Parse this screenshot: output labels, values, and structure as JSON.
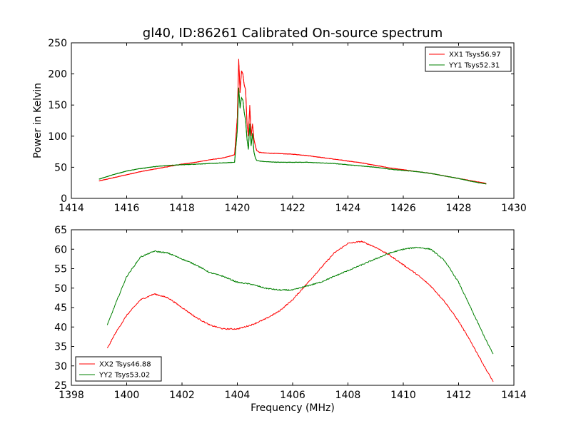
{
  "chart_data": [
    {
      "type": "line",
      "title": "gl40, ID:86261 Calibrated On-source spectrum",
      "xlabel": "",
      "ylabel": "Power in Kelvin",
      "xlim": [
        1414,
        1430
      ],
      "ylim": [
        0,
        250
      ],
      "xticks": [
        1414,
        1416,
        1418,
        1420,
        1422,
        1424,
        1426,
        1428,
        1430
      ],
      "yticks": [
        0,
        50,
        100,
        150,
        200,
        250
      ],
      "legend_position": "top-right",
      "grid": false,
      "series": [
        {
          "name": "XX1 Tsys56.97",
          "color": "#ff0000",
          "x": [
            1415.0,
            1415.5,
            1416.0,
            1416.5,
            1417.0,
            1417.5,
            1418.0,
            1418.5,
            1419.0,
            1419.5,
            1419.9,
            1420.0,
            1420.05,
            1420.1,
            1420.15,
            1420.2,
            1420.25,
            1420.3,
            1420.35,
            1420.4,
            1420.45,
            1420.5,
            1420.55,
            1420.6,
            1420.65,
            1420.7,
            1420.8,
            1421.0,
            1421.5,
            1422.0,
            1422.5,
            1423.0,
            1423.5,
            1424.0,
            1424.5,
            1425.0,
            1425.5,
            1426.0,
            1426.5,
            1427.0,
            1427.5,
            1428.0,
            1428.5,
            1429.0
          ],
          "y": [
            28,
            33,
            38,
            43,
            47,
            51,
            55,
            58,
            62,
            65,
            70,
            130,
            224,
            170,
            205,
            200,
            182,
            175,
            120,
            100,
            150,
            100,
            120,
            95,
            85,
            77,
            74,
            73,
            72,
            71,
            69,
            66,
            63,
            60,
            57,
            53,
            49,
            46,
            43,
            40,
            36,
            32,
            28,
            24
          ]
        },
        {
          "name": "YY1 Tsys52.31",
          "color": "#008000",
          "x": [
            1415.0,
            1415.5,
            1416.0,
            1416.5,
            1417.0,
            1417.5,
            1418.0,
            1418.5,
            1419.0,
            1419.5,
            1419.9,
            1420.0,
            1420.05,
            1420.1,
            1420.15,
            1420.2,
            1420.25,
            1420.3,
            1420.35,
            1420.4,
            1420.45,
            1420.5,
            1420.55,
            1420.6,
            1420.65,
            1420.7,
            1420.8,
            1421.0,
            1421.5,
            1422.0,
            1422.5,
            1423.0,
            1423.5,
            1424.0,
            1424.5,
            1425.0,
            1425.5,
            1426.0,
            1426.5,
            1427.0,
            1427.5,
            1428.0,
            1428.5,
            1429.0
          ],
          "y": [
            31,
            38,
            44,
            48,
            51,
            53,
            54,
            55,
            56,
            57,
            58,
            110,
            178,
            145,
            162,
            158,
            138,
            125,
            95,
            79,
            120,
            85,
            105,
            75,
            65,
            61,
            60,
            59,
            58,
            58,
            58,
            57,
            56,
            54,
            52,
            50,
            47,
            45,
            43,
            40,
            36,
            32,
            27,
            23
          ]
        }
      ]
    },
    {
      "type": "line",
      "title": "",
      "xlabel": "Frequency (MHz)",
      "ylabel": "",
      "xlim": [
        1398,
        1414
      ],
      "ylim": [
        25,
        65
      ],
      "xticks": [
        1398,
        1400,
        1402,
        1404,
        1406,
        1408,
        1410,
        1412,
        1414
      ],
      "yticks": [
        25,
        30,
        35,
        40,
        45,
        50,
        55,
        60,
        65
      ],
      "legend_position": "bottom-left",
      "grid": false,
      "series": [
        {
          "name": "XX2 Tsys46.88",
          "color": "#ff0000",
          "x": [
            1399.3,
            1399.6,
            1400.0,
            1400.5,
            1401.0,
            1401.5,
            1402.0,
            1402.5,
            1403.0,
            1403.5,
            1404.0,
            1404.5,
            1405.0,
            1405.5,
            1406.0,
            1406.5,
            1407.0,
            1407.5,
            1408.0,
            1408.5,
            1409.0,
            1409.5,
            1410.0,
            1410.5,
            1411.0,
            1411.5,
            1412.0,
            1412.5,
            1413.0,
            1413.25
          ],
          "y": [
            34.5,
            38.5,
            43,
            47,
            48.5,
            47.5,
            45,
            42.5,
            40.5,
            39.5,
            39.5,
            40.5,
            42,
            44,
            47,
            51,
            55,
            59,
            61.5,
            62,
            60.5,
            58.5,
            56,
            53.5,
            50.5,
            46.5,
            41.5,
            35.5,
            29,
            26
          ]
        },
        {
          "name": "YY2 Tsys53.02",
          "color": "#008000",
          "x": [
            1399.3,
            1399.6,
            1400.0,
            1400.5,
            1401.0,
            1401.5,
            1402.0,
            1402.5,
            1403.0,
            1403.5,
            1404.0,
            1404.5,
            1405.0,
            1405.5,
            1406.0,
            1406.5,
            1407.0,
            1407.5,
            1408.0,
            1408.5,
            1409.0,
            1409.5,
            1410.0,
            1410.5,
            1411.0,
            1411.5,
            1412.0,
            1412.5,
            1413.0,
            1413.25
          ],
          "y": [
            40.5,
            46,
            53,
            58,
            59.5,
            59,
            57.5,
            56,
            54,
            53,
            51.5,
            51,
            50,
            49.5,
            49.5,
            50.5,
            51.5,
            53,
            54.5,
            56,
            57.5,
            59,
            60,
            60.5,
            60,
            57,
            51.5,
            44,
            36.5,
            33
          ]
        }
      ]
    }
  ]
}
